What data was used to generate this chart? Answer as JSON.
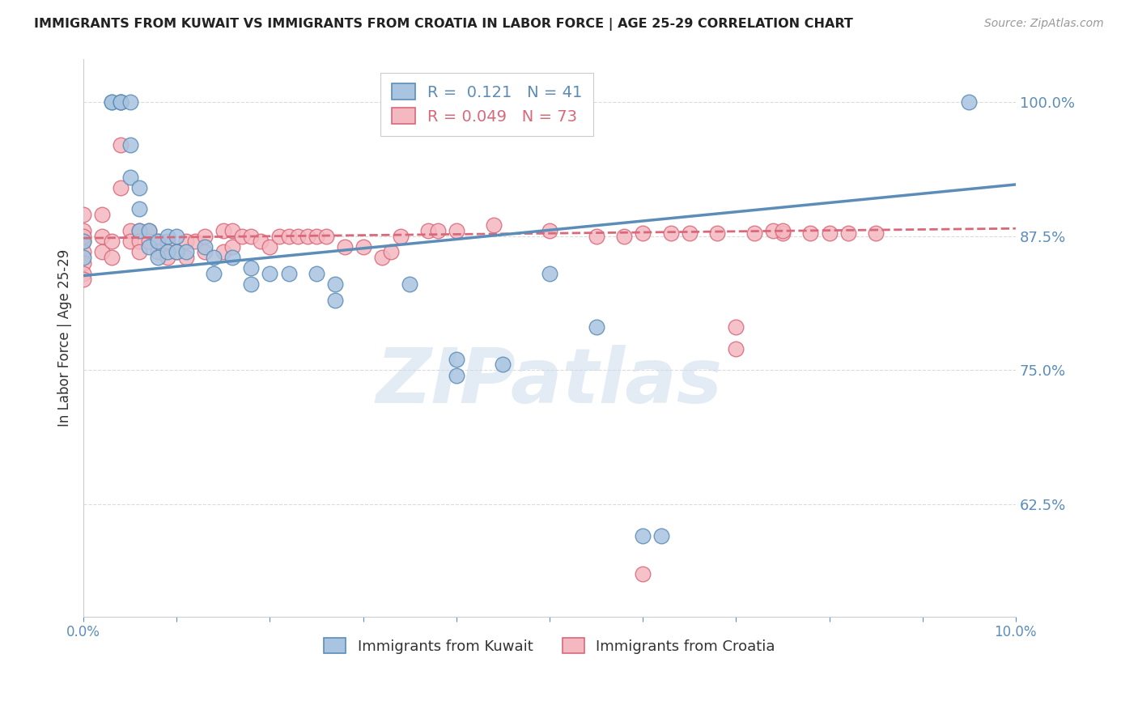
{
  "title": "IMMIGRANTS FROM KUWAIT VS IMMIGRANTS FROM CROATIA IN LABOR FORCE | AGE 25-29 CORRELATION CHART",
  "source": "Source: ZipAtlas.com",
  "ylabel": "In Labor Force | Age 25-29",
  "xlim": [
    0.0,
    0.1
  ],
  "ylim": [
    0.52,
    1.04
  ],
  "kuwait_color": "#a8c4e0",
  "kuwait_edge": "#5b8db8",
  "croatia_color": "#f4b8c0",
  "croatia_edge": "#d9687a",
  "watermark": "ZIPatlas",
  "watermark_color": "#ccdcee",
  "axis_color": "#5b8db8",
  "grid_color": "#cccccc",
  "background_color": "#ffffff",
  "kuwait_scatter_x": [
    0.0,
    0.0,
    0.003,
    0.003,
    0.004,
    0.004,
    0.005,
    0.005,
    0.005,
    0.006,
    0.006,
    0.006,
    0.007,
    0.007,
    0.008,
    0.008,
    0.009,
    0.009,
    0.01,
    0.01,
    0.011,
    0.013,
    0.014,
    0.014,
    0.016,
    0.018,
    0.018,
    0.02,
    0.022,
    0.025,
    0.027,
    0.027,
    0.035,
    0.04,
    0.04,
    0.045,
    0.05,
    0.055,
    0.06,
    0.062,
    0.095
  ],
  "kuwait_scatter_y": [
    0.87,
    0.855,
    1.0,
    1.0,
    1.0,
    1.0,
    1.0,
    0.96,
    0.93,
    0.92,
    0.9,
    0.88,
    0.88,
    0.865,
    0.87,
    0.855,
    0.875,
    0.86,
    0.875,
    0.86,
    0.86,
    0.865,
    0.855,
    0.84,
    0.855,
    0.845,
    0.83,
    0.84,
    0.84,
    0.84,
    0.83,
    0.815,
    0.83,
    0.76,
    0.745,
    0.755,
    0.84,
    0.79,
    0.595,
    0.595,
    1.0
  ],
  "croatia_scatter_x": [
    0.0,
    0.0,
    0.0,
    0.0,
    0.0,
    0.0,
    0.0,
    0.0,
    0.002,
    0.002,
    0.002,
    0.003,
    0.003,
    0.004,
    0.004,
    0.004,
    0.005,
    0.005,
    0.006,
    0.006,
    0.006,
    0.007,
    0.007,
    0.008,
    0.008,
    0.009,
    0.009,
    0.01,
    0.011,
    0.011,
    0.012,
    0.013,
    0.013,
    0.015,
    0.015,
    0.016,
    0.016,
    0.017,
    0.018,
    0.019,
    0.02,
    0.021,
    0.022,
    0.023,
    0.024,
    0.025,
    0.026,
    0.028,
    0.03,
    0.032,
    0.033,
    0.034,
    0.037,
    0.038,
    0.04,
    0.044,
    0.05,
    0.055,
    0.058,
    0.06,
    0.063,
    0.065,
    0.068,
    0.072,
    0.075,
    0.078,
    0.08,
    0.082,
    0.085,
    0.06,
    0.07,
    0.07,
    0.074,
    0.075
  ],
  "croatia_scatter_y": [
    0.88,
    0.87,
    0.86,
    0.85,
    0.84,
    0.835,
    0.875,
    0.895,
    0.875,
    0.86,
    0.895,
    0.87,
    0.855,
    1.0,
    0.96,
    0.92,
    0.88,
    0.87,
    0.88,
    0.87,
    0.86,
    0.88,
    0.87,
    0.87,
    0.86,
    0.87,
    0.855,
    0.86,
    0.87,
    0.855,
    0.87,
    0.875,
    0.86,
    0.88,
    0.86,
    0.88,
    0.865,
    0.875,
    0.875,
    0.87,
    0.865,
    0.875,
    0.875,
    0.875,
    0.875,
    0.875,
    0.875,
    0.865,
    0.865,
    0.855,
    0.86,
    0.875,
    0.88,
    0.88,
    0.88,
    0.885,
    0.88,
    0.875,
    0.875,
    0.878,
    0.878,
    0.878,
    0.878,
    0.878,
    0.878,
    0.878,
    0.878,
    0.878,
    0.878,
    0.56,
    0.79,
    0.77,
    0.88,
    0.88
  ]
}
